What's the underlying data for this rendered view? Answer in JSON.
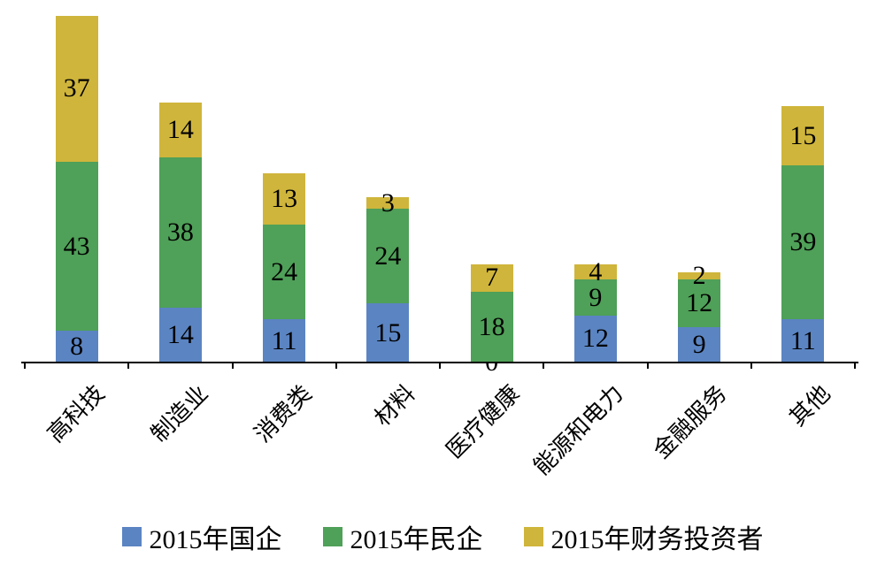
{
  "chart_data": {
    "type": "bar",
    "stacked": true,
    "title": "",
    "xlabel": "",
    "ylabel": "",
    "grid": false,
    "legend_position": "bottom",
    "ylim": [
      0,
      88
    ],
    "categories": [
      "高科技",
      "制造业",
      "消费类",
      "材料",
      "医疗健康",
      "能源和电力",
      "金融服务",
      "其他"
    ],
    "series": [
      {
        "name": "2015年国企",
        "color": "#5B84C2",
        "values": [
          8,
          14,
          11,
          15,
          0,
          12,
          9,
          11
        ]
      },
      {
        "name": "2015年民企",
        "color": "#4FA058",
        "values": [
          43,
          38,
          24,
          24,
          18,
          9,
          12,
          39
        ]
      },
      {
        "name": "2015年财务投资者",
        "color": "#CFB53B",
        "values": [
          37,
          14,
          13,
          3,
          7,
          4,
          2,
          15
        ]
      }
    ],
    "axis_color": "#000000"
  }
}
